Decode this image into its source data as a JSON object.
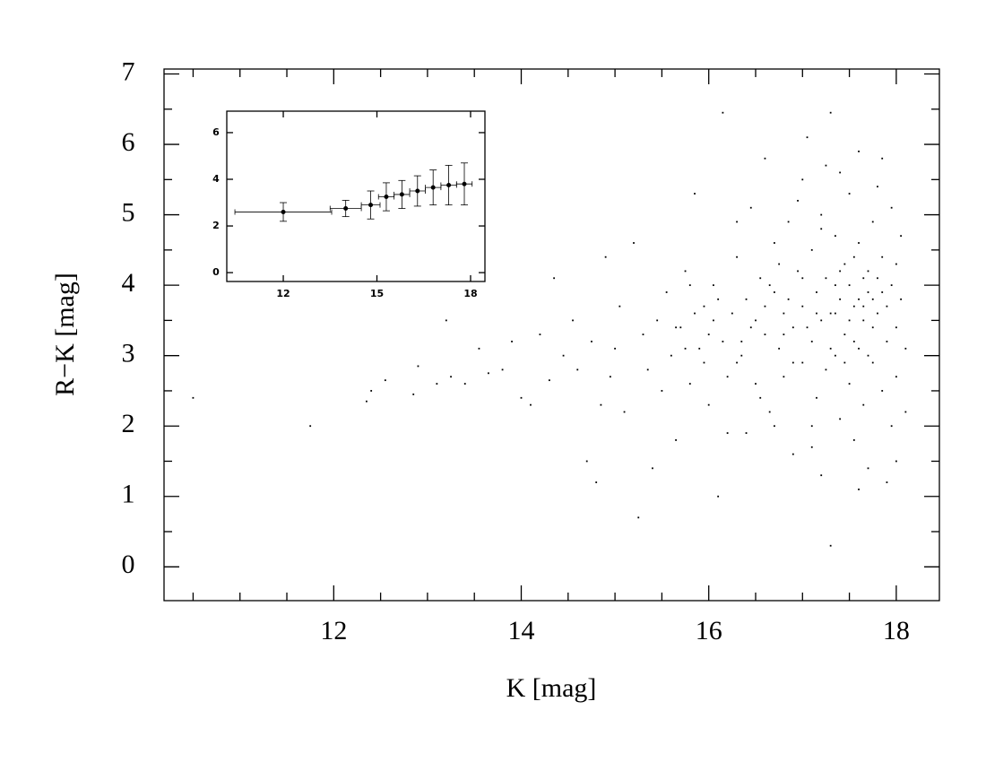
{
  "chart_data": [
    {
      "type": "scatter",
      "xlabel": "K  [mag]",
      "ylabel": "R−K  [mag]",
      "color": "#000000",
      "xlim": [
        10.19,
        18.46
      ],
      "ylim": [
        -0.48,
        7.07
      ],
      "xticks": [
        12,
        14,
        16,
        18
      ],
      "yticks": [
        0,
        1,
        2,
        3,
        4,
        5,
        6,
        7
      ],
      "xminorticks": [
        10.5,
        11,
        11.5,
        12.5,
        13,
        13.5,
        14.5,
        15,
        15.5,
        16.5,
        17,
        17.5
      ],
      "yminorticks": [
        0.5,
        1.5,
        2.5,
        3.5,
        4.5,
        5.5,
        6.5
      ],
      "x": [
        10.5,
        11.75,
        12.35,
        12.4,
        12.55,
        12.85,
        12.9,
        13.1,
        13.2,
        13.25,
        13.4,
        13.55,
        13.65,
        13.8,
        13.9,
        14.0,
        14.1,
        14.2,
        14.3,
        14.35,
        14.45,
        14.55,
        14.6,
        14.7,
        14.75,
        14.8,
        14.85,
        14.9,
        14.95,
        15.0,
        15.05,
        15.1,
        15.2,
        15.25,
        15.3,
        15.35,
        15.4,
        15.45,
        15.5,
        15.55,
        15.6,
        15.65,
        15.7,
        15.75,
        15.8,
        15.85,
        15.9,
        15.95,
        16.0,
        16.05,
        16.1,
        16.15,
        15.65,
        15.75,
        15.85,
        15.95,
        16.05,
        16.1,
        16.15,
        16.2,
        15.8,
        16.0,
        16.25,
        16.3,
        16.3,
        16.35,
        16.4,
        16.4,
        16.45,
        16.5,
        16.5,
        16.55,
        16.6,
        16.6,
        16.65,
        16.7,
        16.7,
        16.75,
        16.8,
        16.8,
        16.85,
        16.9,
        16.9,
        16.95,
        17.0,
        17.0,
        17.0,
        17.05,
        17.1,
        17.1,
        17.15,
        17.15,
        17.2,
        17.2,
        17.2,
        17.25,
        17.25,
        17.3,
        17.3,
        17.3,
        17.35,
        17.35,
        17.4,
        17.4,
        17.4,
        17.45,
        17.45,
        17.5,
        17.5,
        17.5,
        17.55,
        17.55,
        17.6,
        17.6,
        17.6,
        17.65,
        17.65,
        17.7,
        17.7,
        17.7,
        17.75,
        17.75,
        17.8,
        17.8,
        17.85,
        17.85,
        17.9,
        17.9,
        17.95,
        17.95,
        18.0,
        18.0,
        18.05,
        18.05,
        18.1,
        18.1,
        16.35,
        16.6,
        16.75,
        16.9,
        17.05,
        17.1,
        17.2,
        17.35,
        17.45,
        17.55,
        17.6,
        17.7,
        17.8,
        17.9,
        17.95,
        16.45,
        16.55,
        16.65,
        16.8,
        17.0,
        17.15,
        17.3,
        17.4,
        17.5,
        17.65,
        17.75,
        17.85,
        18.0,
        16.2,
        16.3,
        16.7,
        16.95,
        17.25,
        17.6,
        17.85,
        18.0,
        17.1,
        16.85,
        17.35,
        17.55,
        17.75,
        17.65
      ],
      "y": [
        2.4,
        2.0,
        2.35,
        2.5,
        2.65,
        2.45,
        2.85,
        2.6,
        3.5,
        2.7,
        2.6,
        3.1,
        2.75,
        2.8,
        3.2,
        2.4,
        2.3,
        3.3,
        2.65,
        4.1,
        3.0,
        3.5,
        2.8,
        1.5,
        3.2,
        1.2,
        2.3,
        4.4,
        2.7,
        3.1,
        3.7,
        2.2,
        4.6,
        0.7,
        3.3,
        2.8,
        1.4,
        3.5,
        2.5,
        3.9,
        3.0,
        1.8,
        3.4,
        4.2,
        2.6,
        5.3,
        3.1,
        3.7,
        2.3,
        4.0,
        1.0,
        6.45,
        3.4,
        3.1,
        3.6,
        2.9,
        3.5,
        3.8,
        3.2,
        2.7,
        4.0,
        3.3,
        3.6,
        2.9,
        4.4,
        3.2,
        3.8,
        1.9,
        5.1,
        3.5,
        2.6,
        4.1,
        3.3,
        5.8,
        2.2,
        3.9,
        4.6,
        3.1,
        2.7,
        3.6,
        4.9,
        1.6,
        3.4,
        4.2,
        2.9,
        3.7,
        5.5,
        6.1,
        3.2,
        4.5,
        2.4,
        3.9,
        1.3,
        3.5,
        5.0,
        4.1,
        2.8,
        6.45,
        3.6,
        0.3,
        4.7,
        3.0,
        2.1,
        3.8,
        5.6,
        4.3,
        3.3,
        2.6,
        4.0,
        5.3,
        3.7,
        1.8,
        4.6,
        3.1,
        5.9,
        3.5,
        2.3,
        4.2,
        3.9,
        1.4,
        4.9,
        2.9,
        3.6,
        5.4,
        2.5,
        4.4,
        3.2,
        1.2,
        4.0,
        5.1,
        3.4,
        2.7,
        3.8,
        4.7,
        2.2,
        3.1,
        3.0,
        3.7,
        4.3,
        2.9,
        3.4,
        2.0,
        4.8,
        3.6,
        2.9,
        4.4,
        3.8,
        3.0,
        4.1,
        3.7,
        2.0,
        3.4,
        2.4,
        4.0,
        3.3,
        4.1,
        3.6,
        3.1,
        4.2,
        3.5,
        3.7,
        3.4,
        3.9,
        4.3,
        1.9,
        4.9,
        2.0,
        5.2,
        5.7,
        1.1,
        5.8,
        1.5,
        1.7,
        3.8,
        4.0,
        3.2,
        3.8,
        4.1
      ]
    },
    {
      "type": "errorbar",
      "color": "#000000",
      "xlim": [
        10.19,
        18.46
      ],
      "ylim": [
        -0.38,
        6.92
      ],
      "xticks": [
        12,
        15,
        18
      ],
      "yticks": [
        0,
        2,
        4,
        6
      ],
      "x": [
        12.0,
        14.0,
        14.8,
        15.3,
        15.8,
        16.3,
        16.8,
        17.3,
        17.8
      ],
      "xerr": [
        1.55,
        0.5,
        0.3,
        0.25,
        0.25,
        0.25,
        0.25,
        0.25,
        0.25
      ],
      "y": [
        2.6,
        2.75,
        2.9,
        3.25,
        3.35,
        3.5,
        3.65,
        3.75,
        3.8
      ],
      "yerr": [
        0.4,
        0.35,
        0.6,
        0.6,
        0.6,
        0.65,
        0.75,
        0.85,
        0.9
      ]
    }
  ]
}
